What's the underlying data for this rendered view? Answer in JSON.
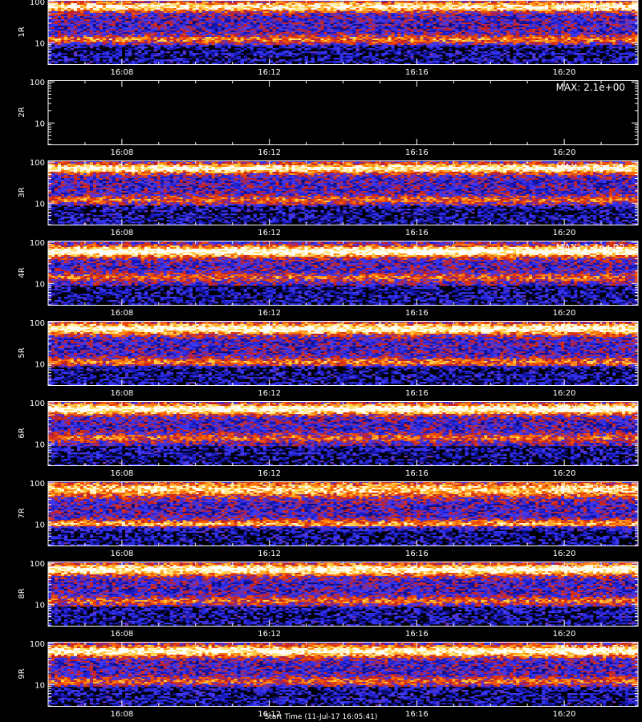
{
  "chart_data": [
    {
      "type": "heatmap",
      "ylabel": "1R",
      "max_label": "MAX: 8.6e+01",
      "x_ticks": [
        "16:08",
        "16:12",
        "16:16",
        "16:20"
      ],
      "y_ticks": [
        "100",
        "10"
      ],
      "yscale": "log",
      "ylim": [
        3,
        110
      ],
      "x_range": [
        "16:06",
        "16:22"
      ],
      "noise": "active",
      "y_bands": [
        {
          "center": 12,
          "width": 0.1,
          "strength": 0.35
        },
        {
          "center": 75,
          "width": 0.12,
          "strength": 0.65
        }
      ]
    },
    {
      "type": "heatmap",
      "ylabel": "2R",
      "max_label": "MAX: 2.1e+00",
      "x_ticks": [
        "16:08",
        "16:12",
        "16:16",
        "16:20"
      ],
      "y_ticks": [
        "100",
        "10"
      ],
      "yscale": "log",
      "ylim": [
        3,
        110
      ],
      "x_range": [
        "16:06",
        "16:22"
      ],
      "noise": "none",
      "y_bands": []
    },
    {
      "type": "heatmap",
      "ylabel": "3R",
      "max_label": "MAX: 7.8e+01",
      "x_ticks": [
        "16:08",
        "16:12",
        "16:16",
        "16:20"
      ],
      "y_ticks": [
        "100",
        "10"
      ],
      "yscale": "log",
      "ylim": [
        3,
        110
      ],
      "x_range": [
        "16:06",
        "16:22"
      ],
      "noise": "active",
      "y_bands": [
        {
          "center": 12,
          "width": 0.1,
          "strength": 0.3
        },
        {
          "center": 70,
          "width": 0.12,
          "strength": 0.7
        }
      ]
    },
    {
      "type": "heatmap",
      "ylabel": "4R",
      "max_label": "MAX: 1.4e+02",
      "x_ticks": [
        "16:08",
        "16:12",
        "16:16",
        "16:20"
      ],
      "y_ticks": [
        "100",
        "10"
      ],
      "yscale": "log",
      "ylim": [
        3,
        110
      ],
      "x_range": [
        "16:06",
        "16:22"
      ],
      "noise": "active",
      "y_bands": [
        {
          "center": 14,
          "width": 0.1,
          "strength": 0.3
        },
        {
          "center": 60,
          "width": 0.14,
          "strength": 0.75
        }
      ]
    },
    {
      "type": "heatmap",
      "ylabel": "5R",
      "max_label": "MAX: 7.4e+01",
      "x_ticks": [
        "16:08",
        "16:12",
        "16:16",
        "16:20"
      ],
      "y_ticks": [
        "100",
        "10"
      ],
      "yscale": "log",
      "ylim": [
        3,
        110
      ],
      "x_range": [
        "16:06",
        "16:22"
      ],
      "noise": "active",
      "y_bands": [
        {
          "center": 11,
          "width": 0.1,
          "strength": 0.35
        },
        {
          "center": 70,
          "width": 0.14,
          "strength": 0.7
        }
      ]
    },
    {
      "type": "heatmap",
      "ylabel": "6R",
      "max_label": "MAX: 1.3e+02",
      "x_ticks": [
        "16:08",
        "16:12",
        "16:16",
        "16:20"
      ],
      "y_ticks": [
        "100",
        "10"
      ],
      "yscale": "log",
      "ylim": [
        3,
        110
      ],
      "x_range": [
        "16:06",
        "16:22"
      ],
      "noise": "active",
      "y_bands": [
        {
          "center": 14,
          "width": 0.1,
          "strength": 0.3
        },
        {
          "center": 70,
          "width": 0.13,
          "strength": 0.75
        }
      ]
    },
    {
      "type": "heatmap",
      "ylabel": "7R",
      "max_label": "MAX: 1.2e+01",
      "x_ticks": [
        "16:08",
        "16:12",
        "16:16",
        "16:20"
      ],
      "y_ticks": [
        "100",
        "10"
      ],
      "yscale": "log",
      "ylim": [
        3,
        110
      ],
      "x_range": [
        "16:06",
        "16:22"
      ],
      "noise": "active",
      "y_bands": [
        {
          "center": 10,
          "width": 0.1,
          "strength": 0.45
        },
        {
          "center": 70,
          "width": 0.18,
          "strength": 0.55
        }
      ]
    },
    {
      "type": "heatmap",
      "ylabel": "8R",
      "max_label": "MAX: 1.1e+02",
      "x_ticks": [
        "16:08",
        "16:12",
        "16:16",
        "16:20"
      ],
      "y_ticks": [
        "100",
        "10"
      ],
      "yscale": "log",
      "ylim": [
        3,
        110
      ],
      "x_range": [
        "16:06",
        "16:22"
      ],
      "noise": "active",
      "y_bands": [
        {
          "center": 12,
          "width": 0.1,
          "strength": 0.3
        },
        {
          "center": 70,
          "width": 0.14,
          "strength": 0.7
        }
      ]
    },
    {
      "type": "heatmap",
      "ylabel": "9R",
      "max_label": "MAX: 1.5e+02",
      "x_ticks": [
        "16:08",
        "16:12",
        "16:16",
        "16:20"
      ],
      "y_ticks": [
        "100",
        "10"
      ],
      "yscale": "log",
      "ylim": [
        3,
        110
      ],
      "x_range": [
        "16:06",
        "16:22"
      ],
      "noise": "active",
      "y_bands": [
        {
          "center": 12,
          "width": 0.1,
          "strength": 0.3
        },
        {
          "center": 65,
          "width": 0.14,
          "strength": 0.7
        }
      ]
    }
  ],
  "footer": {
    "xlabel": "Start Time (11-Jul-17 16:05:41)"
  },
  "colors": {
    "background": "#000000",
    "axis": "#ffffff",
    "colormap": [
      "#000000",
      "#1414b4",
      "#3c3cff",
      "#c81e1e",
      "#ff6a00",
      "#ffd84a",
      "#ffffff"
    ]
  }
}
